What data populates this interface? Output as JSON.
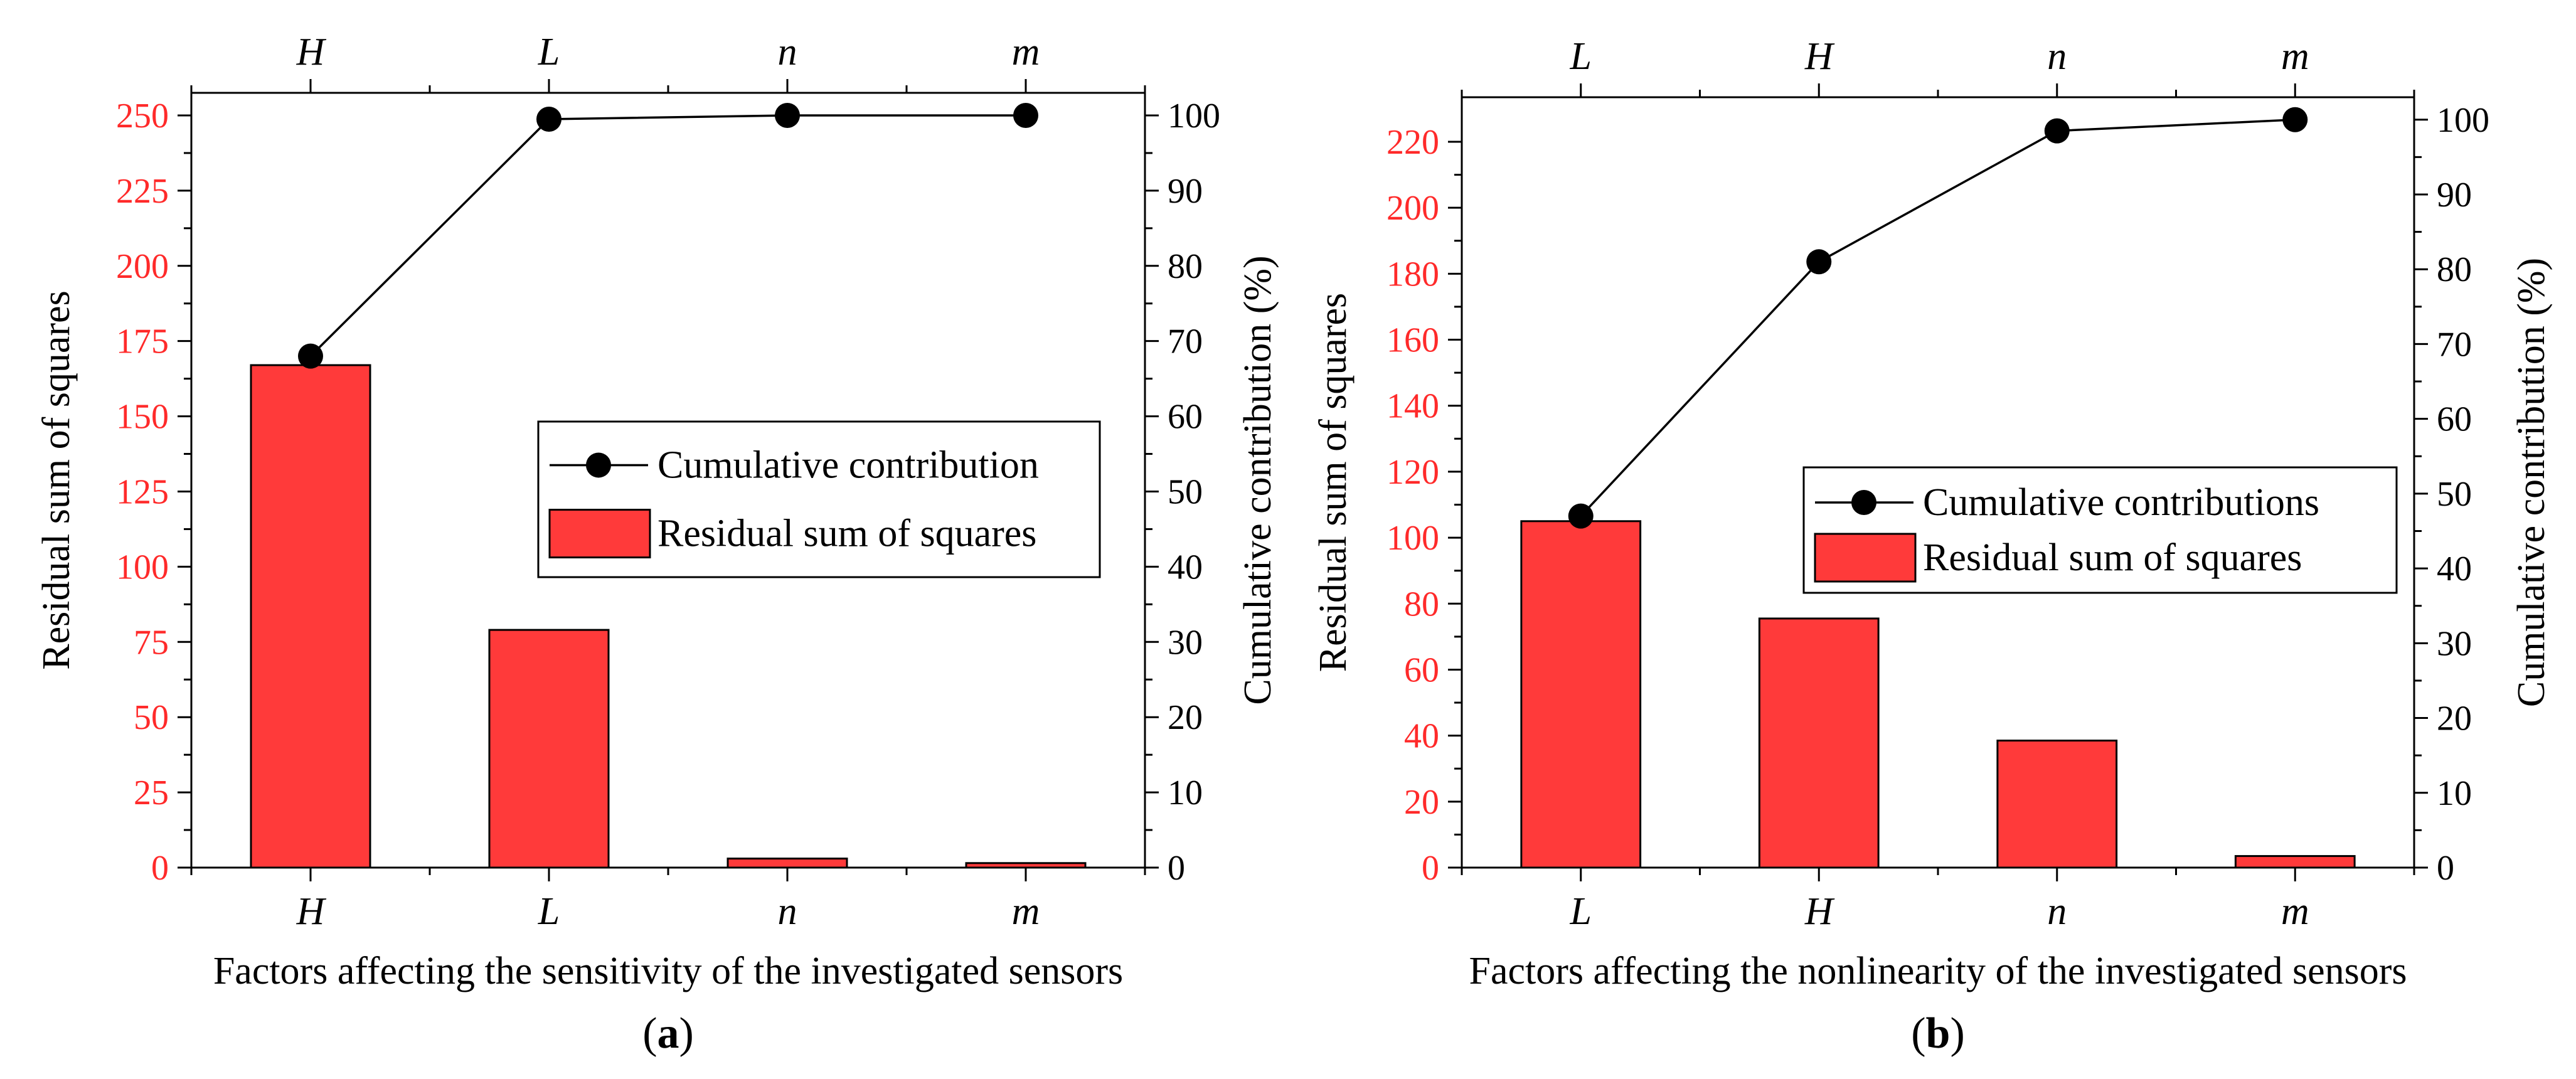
{
  "chart_data": [
    {
      "type": "bar",
      "panel_label_parts": [
        "(",
        "a",
        ")"
      ],
      "categories": [
        "H",
        "L",
        "n",
        "m"
      ],
      "series": [
        {
          "name": "Residual sum of squares",
          "axis": "left",
          "type": "bar",
          "values": [
            167,
            79,
            3,
            1.5
          ]
        },
        {
          "name": "Cumulative contribution",
          "axis": "right",
          "type": "line",
          "values": [
            68,
            99.5,
            100,
            100
          ]
        }
      ],
      "xlabel": "Factors affecting the sensitivity of the investigated sensors",
      "ylabel_left": "Residual sum of squares",
      "ylabel_right": "Cumulative contribution (%)",
      "ylim_left": [
        0,
        257.5
      ],
      "yticks_left": [
        0,
        25,
        50,
        75,
        100,
        125,
        150,
        175,
        200,
        225,
        250
      ],
      "ylim_right": [
        0,
        103
      ],
      "yticks_right": [
        0,
        10,
        20,
        30,
        40,
        50,
        60,
        70,
        80,
        90,
        100
      ],
      "legend": [
        "Cumulative contribution",
        "Residual sum of squares"
      ],
      "legend_position": "center-right",
      "colors": {
        "bar_fill": "#ff3a3a",
        "bar_edge": "#000000",
        "line": "#000000",
        "left_axis_ticks": "#ff2a2a",
        "right_axis_ticks": "#000000"
      }
    },
    {
      "type": "bar",
      "panel_label_parts": [
        "(",
        "b",
        ")"
      ],
      "categories": [
        "L",
        "H",
        "n",
        "m"
      ],
      "series": [
        {
          "name": "Residual sum of squares",
          "axis": "left",
          "type": "bar",
          "values": [
            105,
            75.5,
            38.5,
            3.5
          ]
        },
        {
          "name": "Cumulative contributions",
          "axis": "right",
          "type": "line",
          "values": [
            47,
            81,
            98.5,
            100
          ]
        }
      ],
      "xlabel": "Factors affecting the nonlinearity of the investigated sensors",
      "ylabel_left": "Residual sum of squares",
      "ylabel_right": "Cumulative contribution (%)",
      "ylim_left": [
        0,
        233.5
      ],
      "yticks_left": [
        0,
        20,
        40,
        60,
        80,
        100,
        120,
        140,
        160,
        180,
        200,
        220
      ],
      "ylim_right": [
        0,
        103
      ],
      "yticks_right": [
        0,
        10,
        20,
        30,
        40,
        50,
        60,
        70,
        80,
        90,
        100
      ],
      "legend": [
        "Cumulative contributions",
        "Residual sum of squares"
      ],
      "legend_position": "center-right",
      "colors": {
        "bar_fill": "#ff3a3a",
        "bar_edge": "#000000",
        "line": "#000000",
        "left_axis_ticks": "#ff2a2a",
        "right_axis_ticks": "#000000"
      }
    }
  ]
}
